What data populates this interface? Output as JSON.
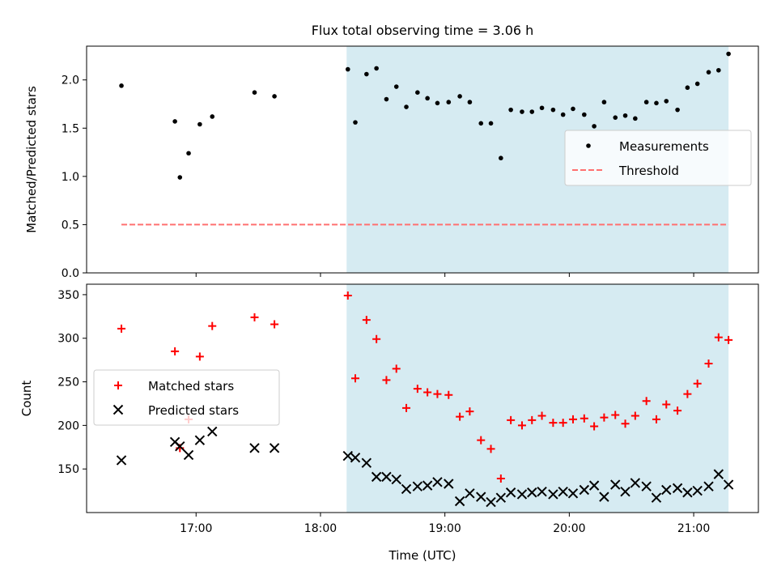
{
  "chart_data": [
    {
      "type": "scatter",
      "title": "Flux total observing time = 3.06 h",
      "xlabel": "",
      "ylabel": "Matched/Predicted stars",
      "ylim": [
        0,
        2.35
      ],
      "yticks": [
        0.0,
        0.5,
        1.0,
        1.5,
        2.0
      ],
      "ytick_labels": [
        "0.0",
        "0.5",
        "1.0",
        "1.5",
        "2.0"
      ],
      "x_unit": "hours UTC",
      "xlim": [
        16.12,
        21.52
      ],
      "shaded_span": {
        "x": [
          18.21,
          21.28
        ],
        "color": "#add8e6"
      },
      "legend": {
        "placement": "center-right",
        "entries": [
          "Measurements",
          "Threshold"
        ]
      },
      "series": [
        {
          "name": "Measurements",
          "style": "dot",
          "color": "#000000",
          "x": [
            16.4,
            16.83,
            16.87,
            16.94,
            17.03,
            17.13,
            17.47,
            17.63,
            18.22,
            18.28,
            18.37,
            18.45,
            18.53,
            18.61,
            18.69,
            18.78,
            18.86,
            18.94,
            19.03,
            19.12,
            19.2,
            19.29,
            19.37,
            19.45,
            19.53,
            19.62,
            19.7,
            19.78,
            19.87,
            19.95,
            20.03,
            20.12,
            20.2,
            20.28,
            20.37,
            20.45,
            20.53,
            20.62,
            20.7,
            20.78,
            20.87,
            20.95,
            21.03,
            21.12,
            21.2,
            21.28
          ],
          "y": [
            1.94,
            1.57,
            0.99,
            1.24,
            1.54,
            1.62,
            1.87,
            1.83,
            2.11,
            1.56,
            2.06,
            2.12,
            1.8,
            1.93,
            1.72,
            1.87,
            1.81,
            1.76,
            1.77,
            1.83,
            1.77,
            1.55,
            1.55,
            1.19,
            1.69,
            1.67,
            1.67,
            1.71,
            1.69,
            1.64,
            1.7,
            1.64,
            1.52,
            1.77,
            1.61,
            1.63,
            1.6,
            1.77,
            1.76,
            1.78,
            1.69,
            1.92,
            1.96,
            2.08,
            2.1,
            2.27
          ]
        },
        {
          "name": "Threshold",
          "style": "dashed",
          "color": "#ff7070",
          "x": [
            16.4,
            21.28
          ],
          "y": [
            0.5,
            0.5
          ]
        }
      ]
    },
    {
      "type": "scatter",
      "title": "",
      "xlabel": "Time (UTC)",
      "ylabel": "Count",
      "ylim": [
        100,
        362
      ],
      "yticks": [
        150,
        200,
        250,
        300,
        350
      ],
      "ytick_labels": [
        "150",
        "200",
        "250",
        "300",
        "350"
      ],
      "x_unit": "hours UTC",
      "xlim": [
        16.12,
        21.52
      ],
      "xticks": [
        17,
        18,
        19,
        20,
        21
      ],
      "xtick_labels": [
        "17:00",
        "18:00",
        "19:00",
        "20:00",
        "21:00"
      ],
      "shaded_span": {
        "x": [
          18.21,
          21.28
        ],
        "color": "#add8e6"
      },
      "legend": {
        "placement": "center-left",
        "entries": [
          "Matched stars",
          "Predicted stars"
        ]
      },
      "series": [
        {
          "name": "Matched stars",
          "marker": "plus",
          "color": "#ff0000",
          "x": [
            16.4,
            16.83,
            16.87,
            16.94,
            17.03,
            17.13,
            17.47,
            17.63,
            18.22,
            18.28,
            18.37,
            18.45,
            18.53,
            18.61,
            18.69,
            18.78,
            18.86,
            18.94,
            19.03,
            19.12,
            19.2,
            19.29,
            19.37,
            19.45,
            19.53,
            19.62,
            19.7,
            19.78,
            19.87,
            19.95,
            20.03,
            20.12,
            20.2,
            20.28,
            20.37,
            20.45,
            20.53,
            20.62,
            20.7,
            20.78,
            20.87,
            20.95,
            21.03,
            21.12,
            21.2,
            21.28
          ],
          "y": [
            311,
            285,
            174,
            207,
            279,
            314,
            324,
            316,
            349,
            254,
            321,
            299,
            252,
            265,
            220,
            242,
            238,
            236,
            235,
            210,
            216,
            183,
            173,
            139,
            206,
            200,
            206,
            211,
            203,
            203,
            207,
            208,
            199,
            209,
            212,
            202,
            211,
            228,
            207,
            224,
            217,
            236,
            248,
            271,
            301,
            298
          ]
        },
        {
          "name": "Predicted stars",
          "marker": "x",
          "color": "#000000",
          "x": [
            16.4,
            16.83,
            16.87,
            16.94,
            17.03,
            17.13,
            17.47,
            17.63,
            18.22,
            18.28,
            18.37,
            18.45,
            18.53,
            18.61,
            18.69,
            18.78,
            18.86,
            18.94,
            19.03,
            19.12,
            19.2,
            19.29,
            19.37,
            19.45,
            19.53,
            19.62,
            19.7,
            19.78,
            19.87,
            19.95,
            20.03,
            20.12,
            20.2,
            20.28,
            20.37,
            20.45,
            20.53,
            20.62,
            20.7,
            20.78,
            20.87,
            20.95,
            21.03,
            21.12,
            21.2,
            21.28
          ],
          "y": [
            160,
            181,
            176,
            166,
            183,
            193,
            174,
            174,
            165,
            163,
            157,
            141,
            141,
            138,
            127,
            130,
            131,
            135,
            133,
            113,
            122,
            118,
            112,
            117,
            123,
            121,
            123,
            124,
            121,
            124,
            122,
            126,
            131,
            118,
            132,
            124,
            134,
            130,
            117,
            126,
            128,
            123,
            125,
            130,
            144,
            132
          ]
        }
      ]
    }
  ]
}
